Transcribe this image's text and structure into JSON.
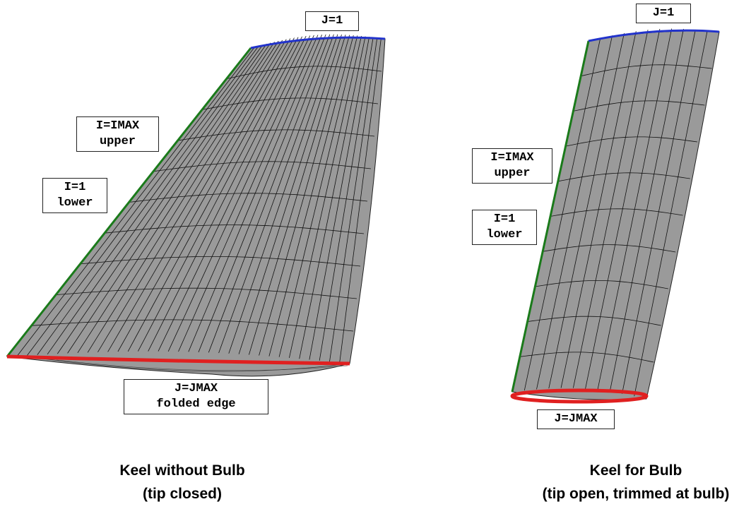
{
  "panels": [
    {
      "labels": [
        [
          "J=1"
        ],
        [
          "I=IMAX",
          "upper"
        ],
        [
          "I=1",
          "lower"
        ],
        [
          "J=JMAX",
          "folded edge"
        ]
      ],
      "caption": [
        "Keel without Bulb",
        "(tip closed)"
      ]
    },
    {
      "labels": [
        [
          "J=1"
        ],
        [
          "I=IMAX",
          "upper"
        ],
        [
          "I=1",
          "lower"
        ],
        [
          "J=JMAX"
        ]
      ],
      "caption": [
        "Keel for Bulb",
        "(tip open, trimmed at bulb)"
      ]
    }
  ]
}
